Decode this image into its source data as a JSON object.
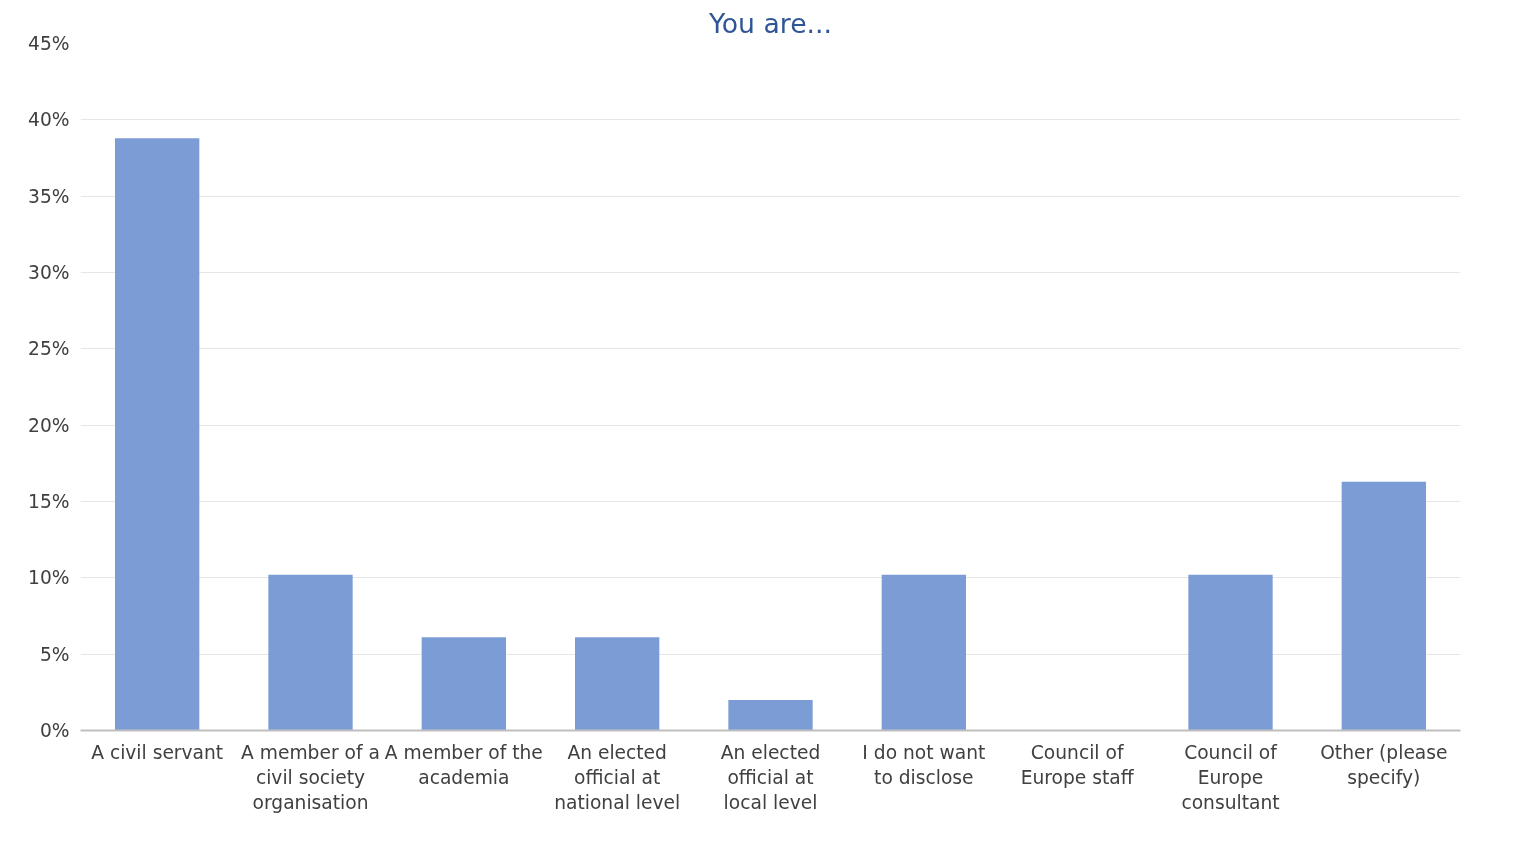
{
  "chart_data": {
    "type": "bar",
    "title": "You are...",
    "categories": [
      "A civil servant",
      "A member of a civil society organisation",
      "A member of the academia",
      "An elected official at national level",
      "An elected official at local level",
      "I do not want to disclose",
      "Council of Europe staff",
      "Council of Europe consultant",
      "Other (please specify)"
    ],
    "values": [
      38.8,
      10.2,
      6.1,
      6.1,
      2.0,
      10.2,
      0,
      10.2,
      16.3
    ],
    "color": "#7c9cd6",
    "ylim": [
      0,
      45
    ],
    "yticks": [
      {
        "value": 0,
        "label": "0%"
      },
      {
        "value": 5,
        "label": "5%"
      },
      {
        "value": 10,
        "label": "10%"
      },
      {
        "value": 15,
        "label": "15%"
      },
      {
        "value": 20,
        "label": "20%"
      },
      {
        "value": 25,
        "label": "25%"
      },
      {
        "value": 30,
        "label": "30%"
      },
      {
        "value": 35,
        "label": "35%"
      },
      {
        "value": 40,
        "label": "40%"
      },
      {
        "value": 45,
        "label": "45%"
      }
    ],
    "grid": "y"
  }
}
